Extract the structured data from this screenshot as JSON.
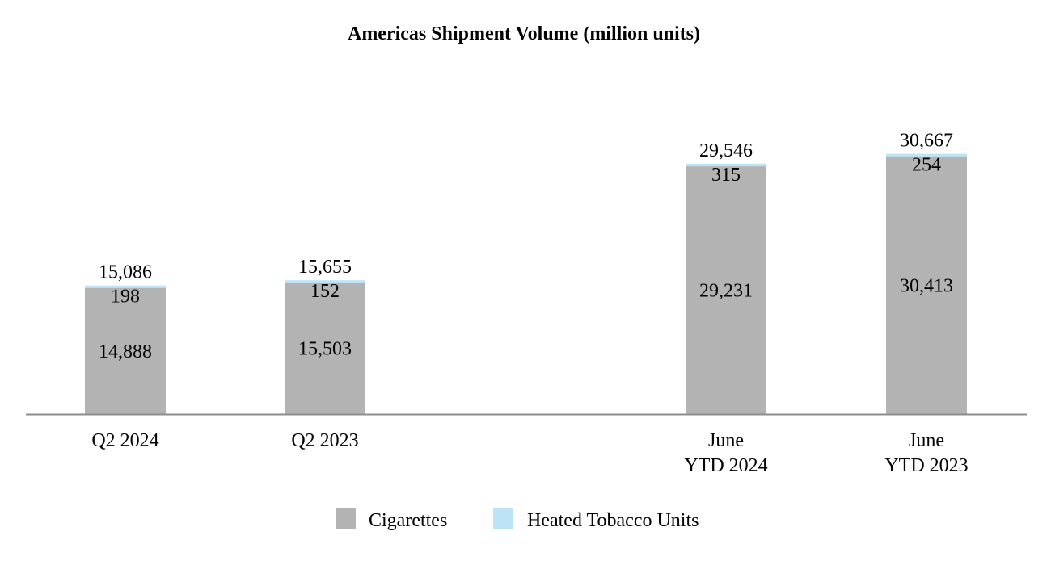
{
  "chart_data": {
    "type": "bar",
    "stacked": true,
    "title": "Americas Shipment Volume (million units)",
    "categories": [
      [
        "Q2 2024"
      ],
      [
        "Q2 2023"
      ],
      [
        "June",
        "YTD 2024"
      ],
      [
        "June",
        "YTD 2023"
      ]
    ],
    "series": [
      {
        "name": "Cigarettes",
        "color": "#b3b3b3",
        "values": [
          14888,
          15503,
          29231,
          30413
        ],
        "labels": [
          "14,888",
          "15,503",
          "29,231",
          "30,413"
        ]
      },
      {
        "name": "Heated Tobacco Units",
        "color": "#bde3f7",
        "values": [
          198,
          152,
          315,
          254
        ],
        "labels": [
          "198",
          "152",
          "315",
          "254"
        ]
      }
    ],
    "totals": [
      15086,
      15655,
      29546,
      30667
    ],
    "total_labels": [
      "15,086",
      "15,655",
      "29,546",
      "30,667"
    ],
    "ylim": [
      0,
      30667
    ],
    "grid": false,
    "legend_position": "bottom"
  }
}
